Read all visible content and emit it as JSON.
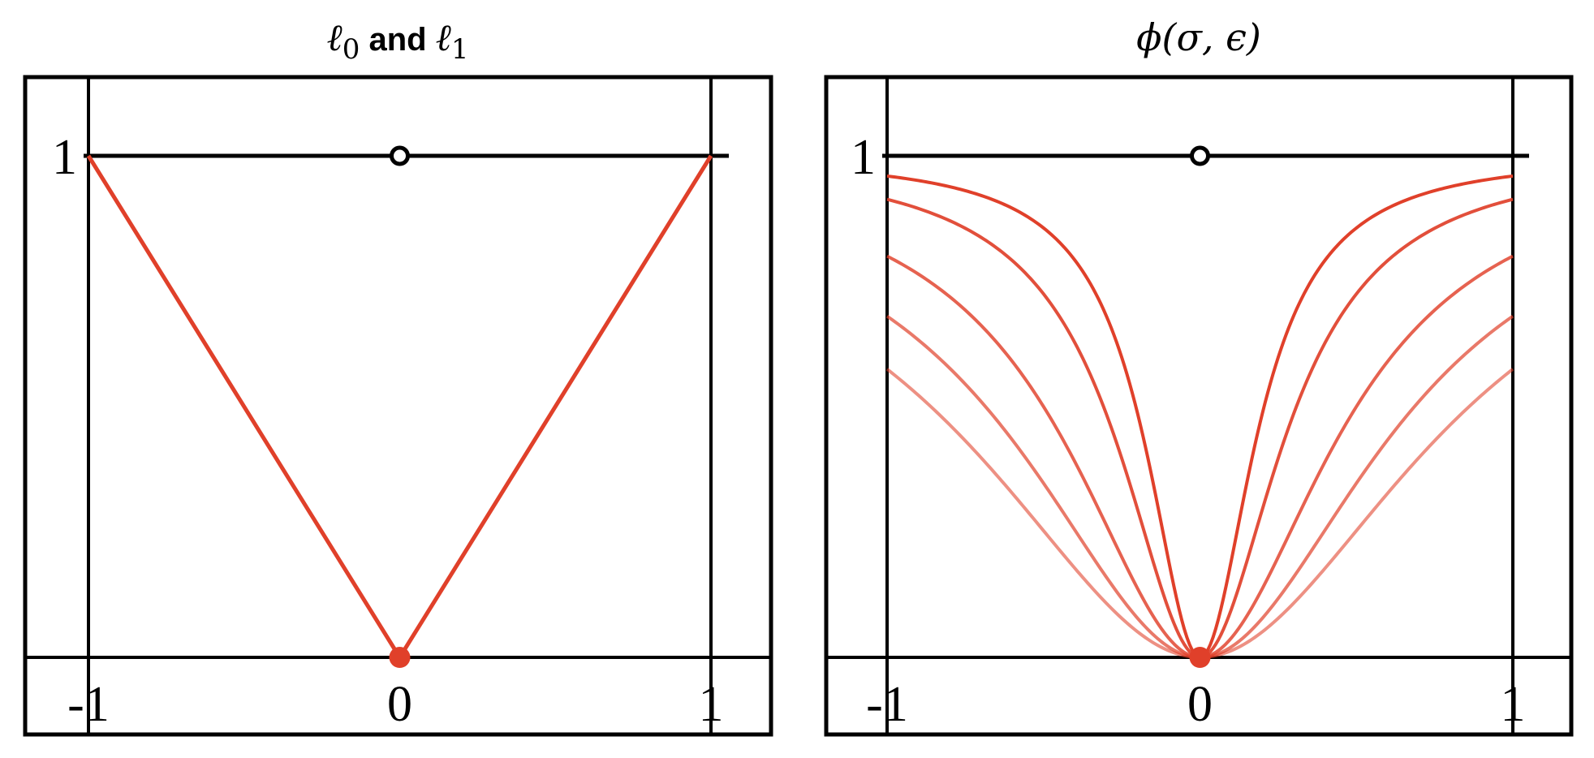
{
  "chart_data": [
    {
      "type": "line",
      "title_parts": [
        {
          "text": "ℓ",
          "style": "italic"
        },
        {
          "text": "0",
          "style": "sub"
        },
        {
          "text": " and ",
          "style": "sans"
        },
        {
          "text": "ℓ",
          "style": "italic"
        },
        {
          "text": "1",
          "style": "sub"
        }
      ],
      "xlim": [
        -1,
        1
      ],
      "ylim": [
        0,
        1
      ],
      "x_ticks": [
        "-1",
        "0",
        "1"
      ],
      "y_ticks": [
        "1"
      ],
      "series": [
        {
          "x": [
            -1,
            0,
            1
          ],
          "y": [
            1,
            0,
            1
          ],
          "color": "#e0402a"
        }
      ],
      "reference": {
        "y": 1,
        "open_point": {
          "x": 0,
          "y": 1
        }
      },
      "filled_point": {
        "x": 0,
        "y": 0,
        "color": "#e0402a"
      }
    },
    {
      "type": "line",
      "title_parts": [
        {
          "text": "ϕ(σ, ϵ)",
          "style": "italic"
        }
      ],
      "xlim": [
        -1,
        1
      ],
      "ylim": [
        0,
        1
      ],
      "x_ticks": [
        "-1",
        "0",
        "1"
      ],
      "y_ticks": [
        "1"
      ],
      "function": "x^2 / (x^2 + eps)",
      "series": [
        {
          "eps": 0.042,
          "color": "#e0402a",
          "opacity": 1.0
        },
        {
          "eps": 0.095,
          "color": "#e0402a",
          "opacity": 0.92
        },
        {
          "eps": 0.25,
          "color": "#e0402a",
          "opacity": 0.82
        },
        {
          "eps": 0.47,
          "color": "#e0402a",
          "opacity": 0.7
        },
        {
          "eps": 0.74,
          "color": "#e0402a",
          "opacity": 0.58
        }
      ],
      "reference": {
        "y": 1,
        "open_point": {
          "x": 0,
          "y": 1
        }
      },
      "filled_point": {
        "x": 0,
        "y": 0,
        "color": "#e0402a"
      }
    }
  ]
}
